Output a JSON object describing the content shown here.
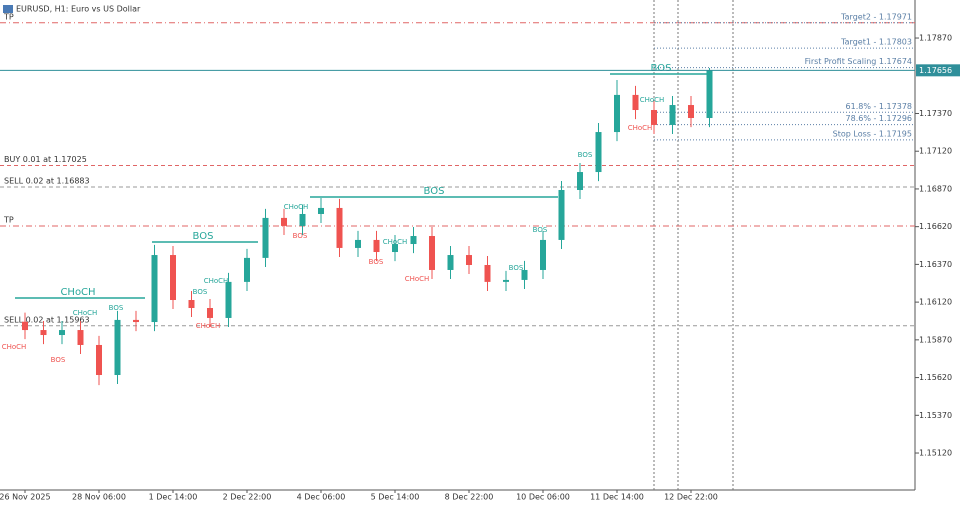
{
  "chart_data": {
    "type": "candlestick",
    "title": "EURUSD, H1: Euro vs US Dollar",
    "categories": [
      "26 Nov 2025",
      null,
      null,
      null,
      "28 Nov 06:00",
      null,
      null,
      null,
      "1 Dec 14:00",
      null,
      null,
      null,
      "2 Dec 22:00",
      null,
      null,
      null,
      "4 Dec 06:00",
      null,
      null,
      null,
      "5 Dec 14:00",
      null,
      null,
      null,
      "8 Dec 22:00",
      null,
      null,
      null,
      "10 Dec 06:00",
      null,
      null,
      null,
      "11 Dec 14:00",
      null,
      null,
      null,
      "12 Dec 22:00",
      null
    ],
    "open": [
      1.1599,
      1.15935,
      1.15902,
      1.15935,
      1.15836,
      1.15637,
      1.16002,
      1.15988,
      1.16432,
      1.16134,
      1.16081,
      1.16015,
      1.16254,
      1.16413,
      1.16678,
      1.16625,
      1.16704,
      1.16744,
      1.16479,
      1.16532,
      1.16452,
      1.16505,
      1.16558,
      1.16333,
      1.16432,
      1.16366,
      1.16254,
      1.16267,
      1.16333,
      1.16532,
      1.16863,
      1.16982,
      1.17247,
      1.17493,
      1.17393,
      1.17294,
      1.17426,
      1.1734
    ],
    "high": [
      1.1605,
      1.15995,
      1.15995,
      1.15995,
      1.15896,
      1.16062,
      1.16062,
      1.16499,
      1.16492,
      1.16194,
      1.16141,
      1.16314,
      1.16473,
      1.16738,
      1.16738,
      1.16764,
      1.1681,
      1.16804,
      1.16592,
      1.16592,
      1.16565,
      1.16618,
      1.16618,
      1.16492,
      1.16492,
      1.16426,
      1.16327,
      1.16393,
      1.16592,
      1.16923,
      1.17042,
      1.17307,
      1.17592,
      1.17553,
      1.17453,
      1.17486,
      1.17486,
      1.17671
    ],
    "low": [
      1.15875,
      1.15842,
      1.15842,
      1.15776,
      1.1557,
      1.15577,
      1.15928,
      1.15928,
      1.16074,
      1.16021,
      1.15955,
      1.15955,
      1.16194,
      1.16353,
      1.16565,
      1.16565,
      1.16644,
      1.16419,
      1.16419,
      1.16392,
      1.16392,
      1.16445,
      1.16273,
      1.16273,
      1.16306,
      1.16194,
      1.16194,
      1.16207,
      1.16273,
      1.16472,
      1.16803,
      1.16922,
      1.17187,
      1.17333,
      1.17234,
      1.17234,
      1.1728,
      1.1728
    ],
    "close": [
      1.15935,
      1.15902,
      1.15935,
      1.15836,
      1.15637,
      1.16002,
      1.15988,
      1.16432,
      1.16134,
      1.16081,
      1.16015,
      1.16254,
      1.16413,
      1.16678,
      1.16625,
      1.16704,
      1.16744,
      1.16479,
      1.16532,
      1.16452,
      1.16505,
      1.16558,
      1.16333,
      1.16432,
      1.16366,
      1.16254,
      1.16267,
      1.16333,
      1.16532,
      1.16863,
      1.16982,
      1.17247,
      1.17493,
      1.17393,
      1.17294,
      1.17426,
      1.1734,
      1.17656
    ],
    "up_color": "#26a69a",
    "down_color": "#ef5350",
    "ylim": [
      1.14875,
      1.18122
    ],
    "yticks": [
      {
        "value": 1.1787,
        "label": "1.17870"
      },
      {
        "value": 1.1737,
        "label": "1.17370"
      },
      {
        "value": 1.1712,
        "label": "1.17120"
      },
      {
        "value": 1.1687,
        "label": "1.16870"
      },
      {
        "value": 1.1662,
        "label": "1.16620"
      },
      {
        "value": 1.1637,
        "label": "1.16370"
      },
      {
        "value": 1.1612,
        "label": "1.16120"
      },
      {
        "value": 1.1587,
        "label": "1.15870"
      },
      {
        "value": 1.1562,
        "label": "1.15620"
      },
      {
        "value": 1.1537,
        "label": "1.15370"
      },
      {
        "value": 1.1512,
        "label": "1.15120"
      }
    ],
    "price_label": {
      "value": 1.17656,
      "label": "1.17656"
    },
    "levels": [
      {
        "label": "TP",
        "value": 1.17971,
        "color": "#e06666",
        "style": "dashdot",
        "side": "left"
      },
      {
        "label": "Target2 - 1.17971",
        "value": 1.17971,
        "color": "#5b7fa6",
        "style": "dotted",
        "side": "right"
      },
      {
        "label": "Target1 - 1.17803",
        "value": 1.17803,
        "color": "#5b7fa6",
        "style": "dotted",
        "side": "right"
      },
      {
        "label": "First Profit Scaling 1.17674",
        "value": 1.17674,
        "color": "#5b7fa6",
        "style": "dotted",
        "side": "right"
      },
      {
        "label": "61.8% - 1.17378",
        "value": 1.17378,
        "color": "#5b7fa6",
        "style": "dotted",
        "side": "right"
      },
      {
        "label": "78.6% - 1.17296",
        "value": 1.17296,
        "color": "#5b7fa6",
        "style": "dotted",
        "side": "right"
      },
      {
        "label": "Stop Loss - 1.17195",
        "value": 1.17195,
        "color": "#5b7fa6",
        "style": "dotted",
        "side": "right"
      },
      {
        "label": "BUY 0.01 at 1.17025",
        "value": 1.17025,
        "color": "#e06666",
        "style": "dashed",
        "side": "left"
      },
      {
        "label": "SELL 0.02 at 1.16883",
        "value": 1.16883,
        "color": "#999999",
        "style": "dashed",
        "side": "left"
      },
      {
        "label": "TP",
        "value": 1.16624,
        "color": "#e06666",
        "style": "dashdot",
        "side": "left"
      },
      {
        "label": "SELL 0.02 at 1.15963",
        "value": 1.15963,
        "color": "#999999",
        "style": "dashed",
        "side": "left"
      }
    ],
    "annotations": [
      "CHoCH",
      "BOS",
      "BOS",
      "BOS",
      "CHoCH",
      "BOS",
      "CHoCH",
      "BOS",
      "CHoCH",
      "BOS",
      "CHoCH",
      "CHoCH",
      "BOS",
      "CHoCH",
      "BOS",
      "BOS",
      "CHoCH",
      "BOS",
      "CHoCH",
      "CHoCH",
      "BOS"
    ]
  }
}
